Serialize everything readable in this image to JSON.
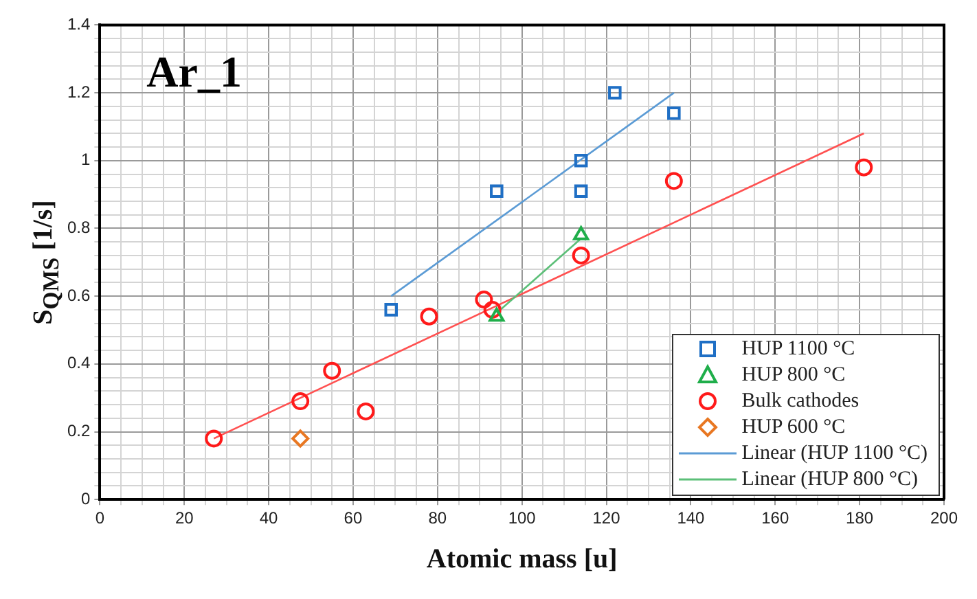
{
  "chart_data": {
    "type": "scatter",
    "title": "Ar_1",
    "xlabel": "Atomic mass [u]",
    "ylabel": "S$_{QMS}$ [1/s]",
    "xlim": [
      0,
      200
    ],
    "xticks": [
      0,
      {
        "value": 5,
        "label": null
      },
      {
        "value": 10,
        "label": null
      },
      {
        "value": 15,
        "label": null
      },
      20,
      {
        "value": 25,
        "label": null
      },
      {
        "value": 30,
        "label": null
      },
      {
        "value": 35,
        "label": null
      },
      40,
      {
        "value": 45,
        "label": null
      },
      {
        "value": 50,
        "label": null
      },
      {
        "value": 55,
        "label": null
      },
      60,
      {
        "value": 65,
        "label": null
      },
      {
        "value": 70,
        "label": null
      },
      {
        "value": 75,
        "label": null
      },
      80,
      {
        "value": 85,
        "label": null
      },
      {
        "value": 90,
        "label": null
      },
      {
        "value": 95,
        "label": null
      },
      100,
      {
        "value": 105,
        "label": null
      },
      {
        "value": 110,
        "label": null
      },
      {
        "value": 115,
        "label": null
      },
      120,
      {
        "value": 125,
        "label": null
      },
      {
        "value": 130,
        "label": null
      },
      {
        "value": 135,
        "label": null
      },
      140,
      {
        "value": 145,
        "label": null
      },
      {
        "value": 150,
        "label": null
      },
      {
        "value": 155,
        "label": null
      },
      160,
      {
        "value": 165,
        "label": null
      },
      {
        "value": 170,
        "label": null
      },
      {
        "value": 175,
        "label": null
      },
      180,
      {
        "value": 185,
        "label": null
      },
      {
        "value": 190,
        "label": null
      },
      {
        "value": 195,
        "label": null
      },
      200
    ],
    "ylim": [
      0,
      1.4
    ],
    "yticks": [
      0,
      {
        "value": 0.04,
        "label": null
      },
      {
        "value": 0.08,
        "label": null
      },
      {
        "value": 0.12,
        "label": null
      },
      {
        "value": 0.16,
        "label": null
      },
      0.2,
      {
        "value": 0.24,
        "label": null
      },
      {
        "value": 0.28,
        "label": null
      },
      {
        "value": 0.32,
        "label": null
      },
      {
        "value": 0.36,
        "label": null
      },
      0.4,
      {
        "value": 0.44,
        "label": null
      },
      {
        "value": 0.48,
        "label": null
      },
      {
        "value": 0.52,
        "label": null
      },
      {
        "value": 0.56,
        "label": null
      },
      0.6,
      {
        "value": 0.64,
        "label": null
      },
      {
        "value": 0.68,
        "label": null
      },
      {
        "value": 0.72,
        "label": null
      },
      {
        "value": 0.76,
        "label": null
      },
      0.8,
      {
        "value": 0.84,
        "label": null
      },
      {
        "value": 0.88,
        "label": null
      },
      {
        "value": 0.92,
        "label": null
      },
      {
        "value": 0.96,
        "label": null
      },
      1,
      {
        "value": 1.04,
        "label": null
      },
      {
        "value": 1.08,
        "label": null
      },
      {
        "value": 1.12,
        "label": null
      },
      {
        "value": 1.16,
        "label": null
      },
      1.2,
      {
        "value": 1.24,
        "label": null
      },
      {
        "value": 1.28,
        "label": null
      },
      {
        "value": 1.32,
        "label": null
      },
      {
        "value": 1.36,
        "label": null
      },
      1.4
    ],
    "grid": true,
    "legend": "bottom right",
    "series": [
      {
        "name": "HUP 1100 °C",
        "type": "scatter",
        "marker": "square",
        "color": "#1f6fc5",
        "x": [
          69,
          94,
          114,
          114,
          122,
          136
        ],
        "values": [
          0.56,
          0.91,
          1.0,
          0.91,
          1.2,
          1.14
        ]
      },
      {
        "name": "HUP 800 °C",
        "type": "scatter",
        "marker": "triangle",
        "color": "#1fae4a",
        "x": [
          94,
          114
        ],
        "values": [
          0.54,
          0.78
        ]
      },
      {
        "name": "Bulk cathodes",
        "type": "scatter",
        "marker": "circle",
        "color": "#ff1a1a",
        "x": [
          27,
          47.5,
          55,
          63,
          78,
          91,
          93,
          114,
          136,
          181
        ],
        "values": [
          0.18,
          0.29,
          0.38,
          0.26,
          0.54,
          0.59,
          0.56,
          0.72,
          0.94,
          0.98
        ]
      },
      {
        "name": "HUP 600 °C",
        "type": "scatter",
        "marker": "diamond",
        "color": "#e87722",
        "x": [
          47.5
        ],
        "values": [
          0.18
        ]
      },
      {
        "name": "Linear (HUP 1100 °C)",
        "type": "line",
        "marker": "none",
        "line_style": "solid",
        "color": "#5b9bd5",
        "x": [
          69,
          136
        ],
        "values": [
          0.6,
          1.2
        ]
      },
      {
        "name": "Linear (HUP 800 °C)",
        "type": "line",
        "marker": "none",
        "line_style": "solid",
        "color": "#5cbf78",
        "x": [
          94,
          114
        ],
        "values": [
          0.55,
          0.77
        ]
      },
      {
        "type": "line",
        "marker": "none",
        "line_style": "solid",
        "color": "#ff5050",
        "x": [
          27,
          181
        ],
        "values": [
          0.18,
          1.08
        ]
      }
    ]
  }
}
